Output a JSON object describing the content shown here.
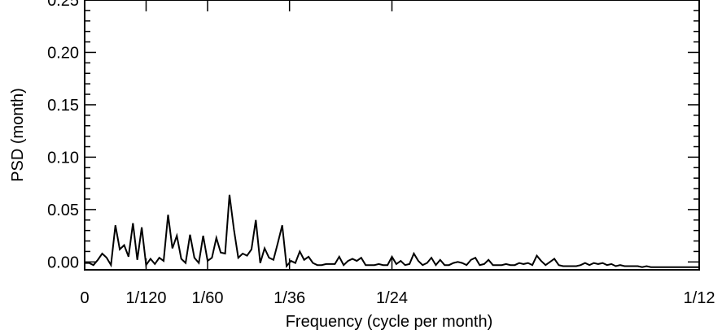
{
  "chart_data": {
    "type": "line",
    "title": "",
    "xlabel": "Frequency (cycle per month)",
    "ylabel": "PSD (month)",
    "xlim": [
      0,
      0.083333
    ],
    "ylim": [
      -0.0075,
      0.25
    ],
    "x_ticks": [
      {
        "value": 0,
        "label": "0"
      },
      {
        "value": 0.008333,
        "label": "1/120"
      },
      {
        "value": 0.016667,
        "label": "1/60"
      },
      {
        "value": 0.027778,
        "label": "1/36"
      },
      {
        "value": 0.041667,
        "label": "1/24"
      },
      {
        "value": 0.083333,
        "label": "1/12"
      }
    ],
    "y_ticks": [
      {
        "value": 0.0,
        "label": "0.00"
      },
      {
        "value": 0.05,
        "label": "0.05"
      },
      {
        "value": 0.1,
        "label": "0.10"
      },
      {
        "value": 0.15,
        "label": "0.15"
      },
      {
        "value": 0.2,
        "label": "0.20"
      },
      {
        "value": 0.25,
        "label": "0.25"
      }
    ],
    "grid": false,
    "series": [
      {
        "color": "#000000",
        "x": [
          0.0,
          0.0006,
          0.00119,
          0.00179,
          0.00238,
          0.00298,
          0.00357,
          0.00417,
          0.00476,
          0.00536,
          0.00595,
          0.00655,
          0.00714,
          0.00774,
          0.00833,
          0.00893,
          0.00952,
          0.01012,
          0.01071,
          0.01131,
          0.0119,
          0.0125,
          0.0131,
          0.01369,
          0.01429,
          0.01488,
          0.01548,
          0.01607,
          0.01667,
          0.01726,
          0.01786,
          0.01845,
          0.01905,
          0.01964,
          0.02024,
          0.02083,
          0.02143,
          0.02202,
          0.02262,
          0.02321,
          0.02381,
          0.0244,
          0.025,
          0.0256,
          0.02619,
          0.02679,
          0.02738,
          0.02798,
          0.02857,
          0.02917,
          0.02976,
          0.03036,
          0.03095,
          0.03155,
          0.03214,
          0.03274,
          0.03333,
          0.03393,
          0.03452,
          0.03512,
          0.03571,
          0.03631,
          0.0369,
          0.0375,
          0.0381,
          0.03869,
          0.03929,
          0.03988,
          0.04048,
          0.04107,
          0.04167,
          0.04226,
          0.04286,
          0.04345,
          0.04405,
          0.04464,
          0.04524,
          0.04583,
          0.04643,
          0.04702,
          0.04762,
          0.04821,
          0.04881,
          0.0494,
          0.05,
          0.0506,
          0.05119,
          0.05179,
          0.05238,
          0.05298,
          0.05357,
          0.05417,
          0.05476,
          0.05536,
          0.05595,
          0.05655,
          0.05714,
          0.05774,
          0.05833,
          0.05893,
          0.05952,
          0.06012,
          0.06071,
          0.06131,
          0.0619,
          0.0625,
          0.0631,
          0.06369,
          0.06429,
          0.06488,
          0.06548,
          0.06607,
          0.06667,
          0.06726,
          0.06786,
          0.06845,
          0.06905,
          0.06964,
          0.07024,
          0.07083,
          0.07143,
          0.07202,
          0.07262,
          0.07321,
          0.07381,
          0.0744,
          0.075,
          0.0756,
          0.07619,
          0.07679,
          0.07738,
          0.07798,
          0.07857,
          0.07917,
          0.07976,
          0.08036,
          0.08095,
          0.08155,
          0.08214,
          0.08274,
          0.08333
        ],
        "y": [
          -0.001,
          -0.001,
          -0.003,
          0.002,
          0.008,
          0.004,
          -0.003,
          0.035,
          0.012,
          0.016,
          0.005,
          0.037,
          0.002,
          0.033,
          -0.003,
          0.003,
          -0.002,
          0.004,
          0.001,
          0.045,
          0.013,
          0.025,
          0.003,
          -0.001,
          0.026,
          0.004,
          -0.001,
          0.025,
          0.001,
          0.004,
          0.023,
          0.009,
          0.008,
          0.064,
          0.031,
          0.004,
          0.008,
          0.006,
          0.012,
          0.04,
          -0.001,
          0.013,
          0.004,
          0.002,
          0.018,
          0.035,
          -0.004,
          0.001,
          -0.001,
          0.01,
          0.002,
          0.005,
          -0.001,
          -0.003,
          -0.003,
          -0.002,
          -0.002,
          -0.002,
          0.005,
          -0.003,
          0.001,
          0.003,
          0.001,
          0.004,
          -0.003,
          -0.003,
          -0.003,
          -0.002,
          -0.003,
          -0.003,
          0.005,
          -0.002,
          0.001,
          -0.003,
          -0.002,
          0.008,
          0.001,
          -0.003,
          -0.001,
          0.004,
          -0.003,
          0.002,
          -0.003,
          -0.003,
          -0.001,
          0.0,
          -0.001,
          -0.003,
          0.002,
          0.004,
          -0.003,
          -0.002,
          0.002,
          -0.003,
          -0.003,
          -0.003,
          -0.002,
          -0.003,
          -0.003,
          -0.001,
          -0.002,
          -0.001,
          -0.003,
          0.006,
          0.001,
          -0.003,
          0.0,
          0.003,
          -0.003,
          -0.004,
          -0.004,
          -0.004,
          -0.004,
          -0.003,
          -0.001,
          -0.003,
          -0.001,
          -0.002,
          -0.001,
          -0.003,
          -0.002,
          -0.004,
          -0.003,
          -0.004,
          -0.004,
          -0.004,
          -0.004,
          -0.005,
          -0.004,
          -0.005,
          -0.005,
          -0.005,
          -0.005,
          -0.005,
          -0.005,
          -0.005,
          -0.005,
          -0.005,
          -0.005,
          -0.005,
          -0.005
        ]
      }
    ]
  }
}
